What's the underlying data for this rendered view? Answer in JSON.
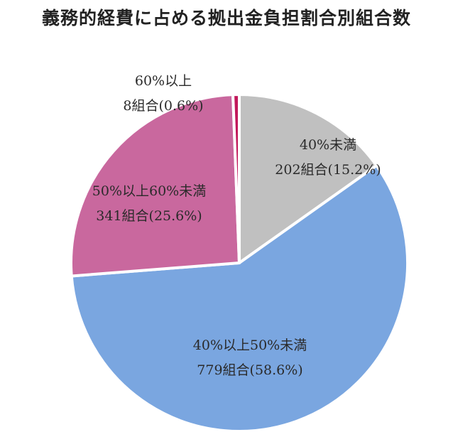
{
  "chart_data": {
    "type": "pie",
    "title": "義務的経費に占める拠出金負担割合別組合数",
    "slices": [
      {
        "label": "40%未満",
        "count_label": "202組合(15.2%)",
        "count": 202,
        "percent": 15.2,
        "color": "#c0c0c0"
      },
      {
        "label": "40%以上50%未満",
        "count_label": "779組合(58.6%)",
        "count": 779,
        "percent": 58.6,
        "color": "#7aa6e0"
      },
      {
        "label": "50%以上60%未満",
        "count_label": "341組合(25.6%)",
        "count": 341,
        "percent": 25.6,
        "color": "#c9689e"
      },
      {
        "label": "60%以上",
        "count_label": "8組合(0.6%)",
        "count": 8,
        "percent": 0.6,
        "color": "#c2185b"
      }
    ],
    "start_angle": "12 o'clock",
    "direction": "clockwise",
    "legend": "none"
  }
}
